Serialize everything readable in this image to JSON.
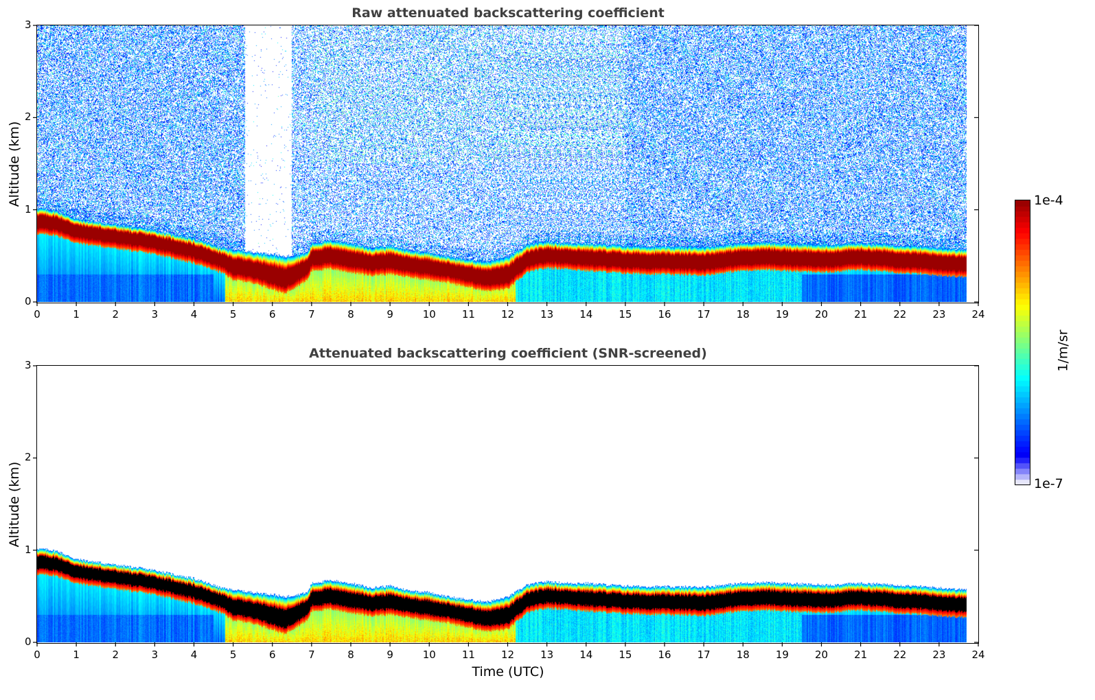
{
  "chart_data": [
    {
      "type": "heatmap",
      "title": "Raw attenuated backscattering coefficient",
      "xlabel": "",
      "ylabel": "Altitude (km)",
      "xlim": [
        0,
        24
      ],
      "ylim": [
        0,
        3
      ],
      "xticks": [
        "0",
        "1",
        "2",
        "3",
        "4",
        "5",
        "6",
        "7",
        "8",
        "9",
        "10",
        "11",
        "12",
        "13",
        "14",
        "15",
        "16",
        "17",
        "18",
        "19",
        "20",
        "21",
        "22",
        "23",
        "24"
      ],
      "yticks": [
        "0",
        "1",
        "2",
        "3"
      ],
      "screened": false,
      "data_end_hour": 23.7,
      "colorscale": "jet",
      "layer_top_km": {
        "hours": [
          0,
          0.5,
          1,
          2,
          3,
          4,
          4.7,
          5,
          5.5,
          6,
          6.3,
          6.9,
          7,
          7.5,
          8,
          8.5,
          9,
          9.5,
          10,
          10.5,
          11,
          11.5,
          12,
          12.5,
          13,
          13.5,
          14,
          15,
          16,
          17,
          18,
          18.5,
          19,
          20,
          21,
          22,
          23,
          23.7
        ],
        "values": [
          0.98,
          0.95,
          0.86,
          0.8,
          0.74,
          0.65,
          0.55,
          0.53,
          0.5,
          0.48,
          0.45,
          0.5,
          0.6,
          0.63,
          0.6,
          0.55,
          0.57,
          0.52,
          0.5,
          0.45,
          0.42,
          0.4,
          0.45,
          0.58,
          0.62,
          0.6,
          0.6,
          0.57,
          0.56,
          0.56,
          0.6,
          0.61,
          0.6,
          0.58,
          0.6,
          0.58,
          0.55,
          0.53
        ]
      },
      "layer_bottom_km": {
        "hours": [
          0,
          0.5,
          1,
          2,
          3,
          4,
          4.7,
          5,
          5.5,
          6,
          6.3,
          6.9,
          7,
          7.5,
          8,
          8.5,
          9,
          9.5,
          10,
          10.5,
          11,
          11.5,
          12,
          12.5,
          13,
          13.5,
          14,
          15,
          16,
          17,
          18,
          18.5,
          19,
          20,
          21,
          22,
          23,
          23.7
        ],
        "values": [
          0.8,
          0.78,
          0.7,
          0.64,
          0.58,
          0.48,
          0.38,
          0.3,
          0.27,
          0.2,
          0.15,
          0.3,
          0.4,
          0.42,
          0.38,
          0.35,
          0.36,
          0.33,
          0.3,
          0.27,
          0.22,
          0.18,
          0.2,
          0.38,
          0.43,
          0.42,
          0.4,
          0.37,
          0.36,
          0.35,
          0.4,
          0.41,
          0.4,
          0.38,
          0.41,
          0.38,
          0.35,
          0.33
        ]
      }
    },
    {
      "type": "heatmap",
      "title": "Attenuated backscattering coefficient (SNR-screened)",
      "xlabel": "Time (UTC)",
      "ylabel": "Altitude (km)",
      "xlim": [
        0,
        24
      ],
      "ylim": [
        0,
        3
      ],
      "xticks": [
        "0",
        "1",
        "2",
        "3",
        "4",
        "5",
        "6",
        "7",
        "8",
        "9",
        "10",
        "11",
        "12",
        "13",
        "14",
        "15",
        "16",
        "17",
        "18",
        "19",
        "20",
        "21",
        "22",
        "23",
        "24"
      ],
      "yticks": [
        "0",
        "1",
        "2",
        "3"
      ],
      "screened": true,
      "data_end_hour": 23.7,
      "colorscale": "jet"
    }
  ],
  "colorbar": {
    "max_label": "1e-4",
    "min_label": "1e-7",
    "units": "1/m/sr",
    "colors": {
      "dark_red": "#7f0000",
      "red": "#ff1a00",
      "yellow": "#f5f500",
      "cyan": "#00e5f5",
      "blue": "#0000ff",
      "faint": "#e6e6fa"
    }
  }
}
